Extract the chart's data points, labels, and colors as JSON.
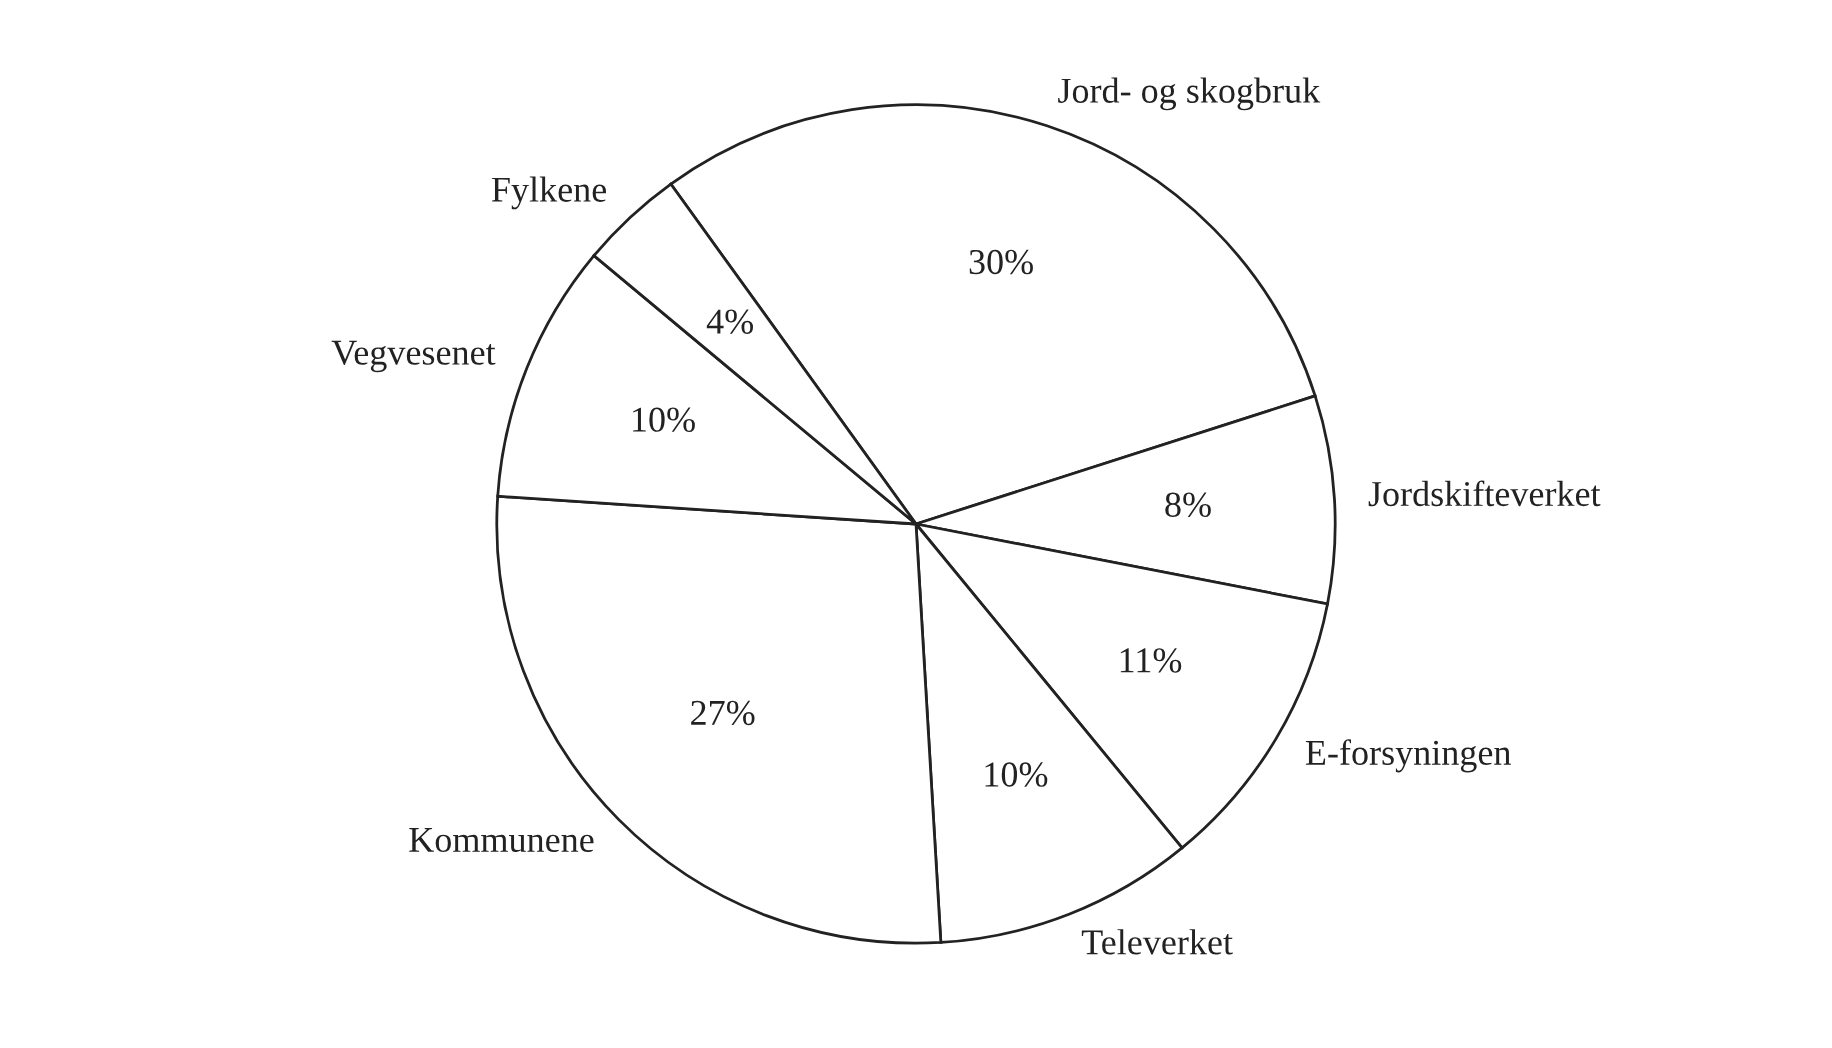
{
  "chart_data": {
    "type": "pie",
    "categories": [
      "Jord- og skogbruk",
      "Jordskifteverket",
      "E-forsyningen",
      "Televerket",
      "Kommunene",
      "Vegvesenet",
      "Fylkene"
    ],
    "values": [
      30,
      8,
      11,
      10,
      27,
      10,
      4
    ],
    "value_labels": [
      "30%",
      "8%",
      "11%",
      "10%",
      "27%",
      "10%",
      "4%"
    ],
    "colors": [
      "#ffffff",
      "#ffffff",
      "#ffffff",
      "#ffffff",
      "#ffffff",
      "#ffffff",
      "#ffffff"
    ]
  }
}
